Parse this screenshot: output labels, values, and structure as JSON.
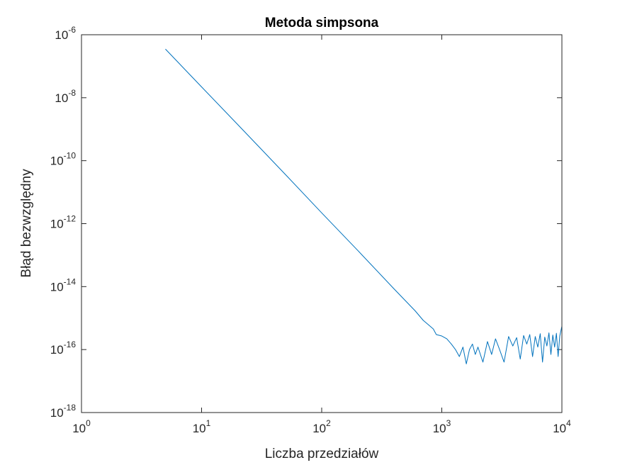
{
  "chart_data": {
    "type": "line",
    "title": "Metoda simpsona",
    "xlabel": "Liczba przedziałów",
    "ylabel": "Błąd bezwzględny",
    "x_scale": "log",
    "y_scale": "log",
    "xlim": [
      1,
      10000
    ],
    "ylim": [
      1e-18,
      1e-06
    ],
    "grid": false,
    "legend": "none",
    "x_ticks": [
      {
        "base": "10",
        "exp": "0",
        "value": 1
      },
      {
        "base": "10",
        "exp": "1",
        "value": 10
      },
      {
        "base": "10",
        "exp": "2",
        "value": 100
      },
      {
        "base": "10",
        "exp": "3",
        "value": 1000
      },
      {
        "base": "10",
        "exp": "4",
        "value": 10000
      }
    ],
    "y_ticks": [
      {
        "base": "10",
        "exp": "-6",
        "value": 1e-06
      },
      {
        "base": "10",
        "exp": "-8",
        "value": 1e-08
      },
      {
        "base": "10",
        "exp": "-10",
        "value": 1e-10
      },
      {
        "base": "10",
        "exp": "-12",
        "value": 1e-12
      },
      {
        "base": "10",
        "exp": "-14",
        "value": 1e-14
      },
      {
        "base": "10",
        "exp": "-16",
        "value": 1e-16
      },
      {
        "base": "10",
        "exp": "-18",
        "value": 1e-18
      }
    ],
    "series": [
      {
        "color": "#0072BD",
        "x": [
          5,
          10,
          20,
          50,
          100,
          200,
          400,
          600,
          700,
          800,
          850,
          900,
          1000,
          1100,
          1200,
          1300,
          1400,
          1500,
          1600,
          1700,
          1800,
          1900,
          2000,
          2200,
          2400,
          2600,
          2800,
          3000,
          3300,
          3600,
          3900,
          4200,
          4500,
          4800,
          5100,
          5400,
          5700,
          6000,
          6300,
          6600,
          6900,
          7200,
          7500,
          7800,
          8100,
          8400,
          8700,
          9000,
          9300,
          9600,
          10000
        ],
        "y": [
          3.5e-07,
          2.2e-08,
          1.4e-09,
          3.6e-11,
          2.2e-12,
          1.4e-13,
          8.5e-15,
          1.7e-15,
          8.5e-16,
          5.5e-16,
          4.5e-16,
          3e-16,
          2.7e-16,
          2.2e-16,
          1.5e-16,
          1e-16,
          6e-17,
          1.2e-16,
          3.5e-17,
          1e-16,
          1.5e-16,
          7e-17,
          1.2e-16,
          4e-17,
          1.8e-16,
          7e-17,
          2.2e-16,
          1.1e-16,
          4e-17,
          2.6e-16,
          1.3e-16,
          2.4e-16,
          5e-17,
          2.8e-16,
          1.5e-16,
          3e-16,
          6e-17,
          2.6e-16,
          1.2e-16,
          3.2e-16,
          4e-17,
          2.5e-16,
          1.3e-16,
          3.4e-16,
          7e-17,
          2.9e-16,
          1.2e-16,
          3.3e-16,
          6e-17,
          2.7e-16,
          5.5e-16
        ]
      }
    ]
  }
}
